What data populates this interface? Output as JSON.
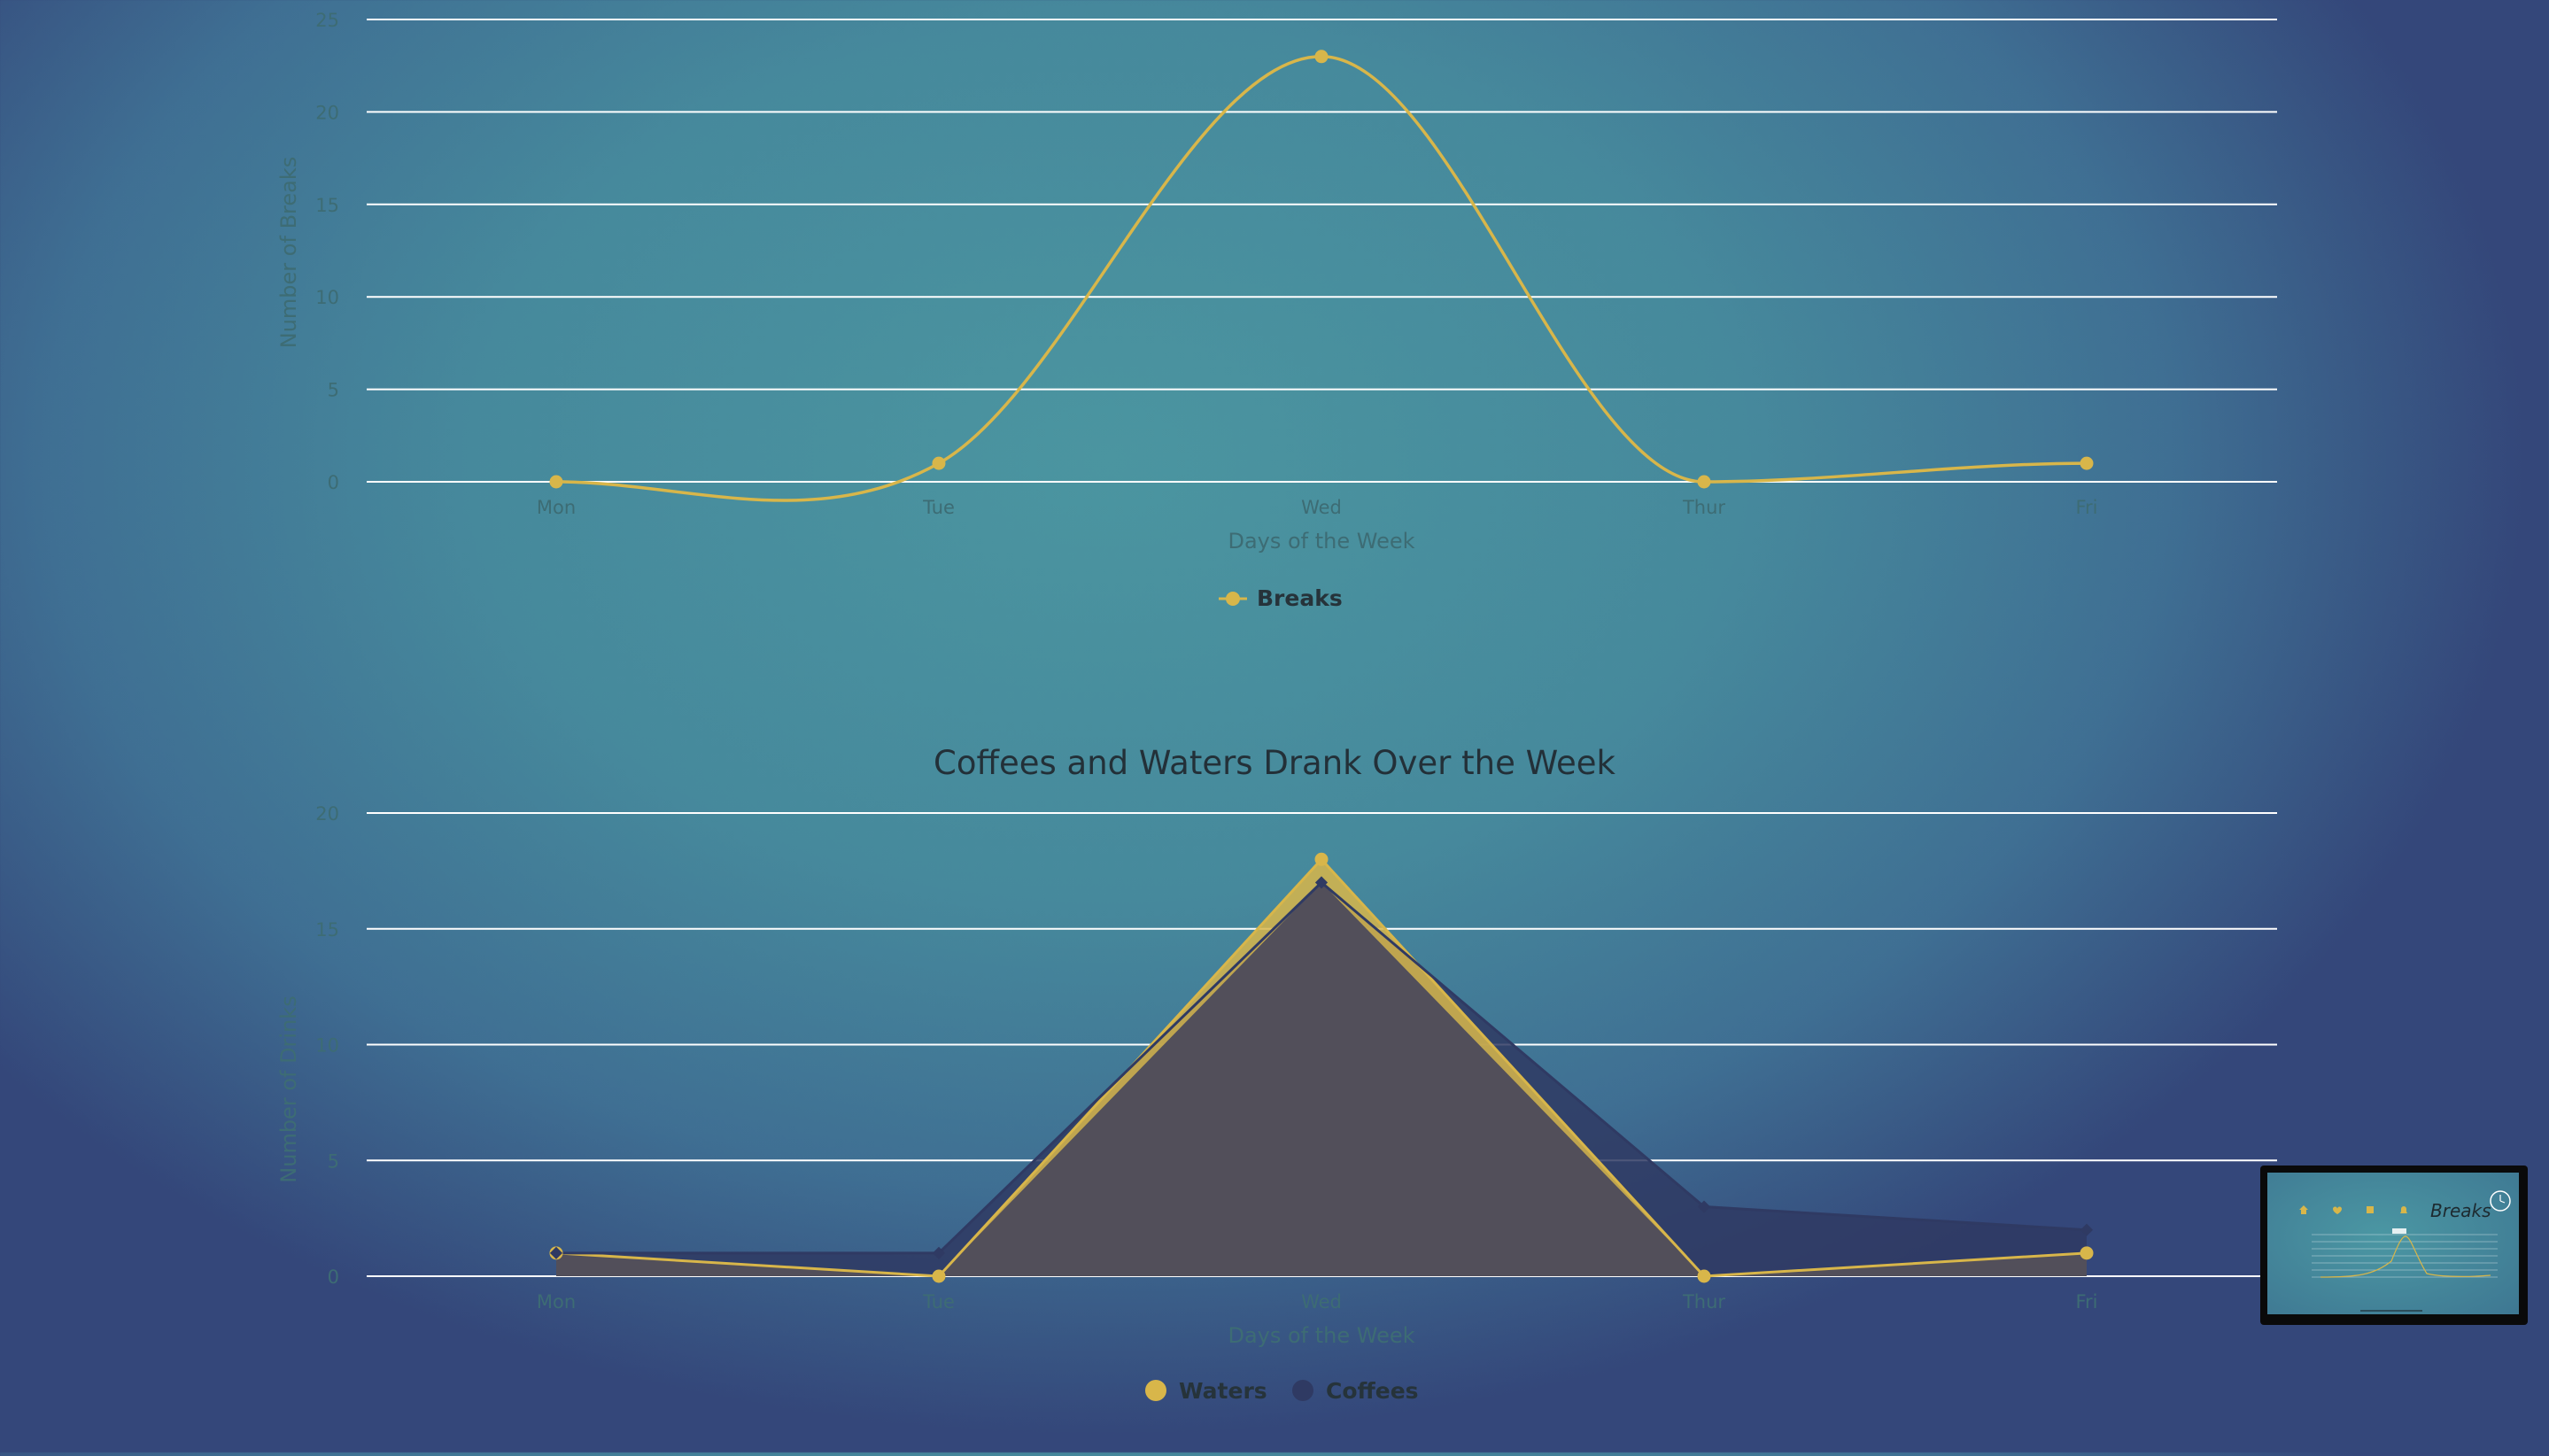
{
  "colors": {
    "waters": "#d8b64a",
    "coffees": "#2f3a63",
    "breaks": "#d8b64a",
    "overlap": "#524f5a"
  },
  "chart_data": [
    {
      "type": "line",
      "title": "",
      "xlabel": "Days of the Week",
      "ylabel": "Number of Breaks",
      "categories": [
        "Mon",
        "Tue",
        "Wed",
        "Thur",
        "Fri"
      ],
      "yticks": [
        "0",
        "5",
        "10",
        "15",
        "20",
        "25"
      ],
      "ylim": [
        0,
        25
      ],
      "grid": true,
      "legend_position": "bottom",
      "series": [
        {
          "name": "Breaks",
          "values": [
            0,
            1,
            23,
            0,
            1
          ]
        }
      ]
    },
    {
      "type": "area",
      "title": "Coffees and Waters Drank Over the Week",
      "xlabel": "Days of the Week",
      "ylabel": "Number of Drinks",
      "categories": [
        "Mon",
        "Tue",
        "Wed",
        "Thur",
        "Fri"
      ],
      "yticks": [
        "0",
        "5",
        "10",
        "15",
        "20"
      ],
      "ylim": [
        0,
        20
      ],
      "grid": true,
      "legend_position": "bottom",
      "series": [
        {
          "name": "Waters",
          "values": [
            1,
            0,
            18,
            0,
            1
          ]
        },
        {
          "name": "Coffees",
          "values": [
            1,
            1,
            17,
            3,
            2
          ]
        }
      ]
    }
  ],
  "thumbnail": {
    "title": "Breaks",
    "icons": [
      "home-icon",
      "heart-icon",
      "calendar-icon",
      "bell-icon",
      "clock-icon"
    ]
  }
}
